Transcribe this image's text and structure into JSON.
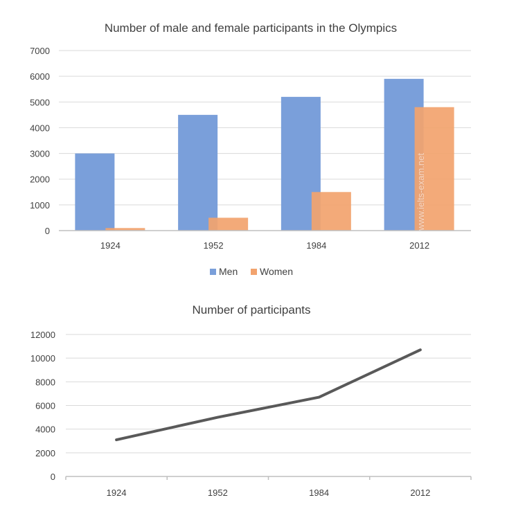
{
  "chart_data": [
    {
      "type": "bar",
      "title": "Number of male and female participants in the Olympics",
      "categories": [
        "1924",
        "1952",
        "1984",
        "2012"
      ],
      "series": [
        {
          "name": "Men",
          "color": "#7a9fda",
          "values": [
            3000,
            4500,
            5200,
            5900
          ]
        },
        {
          "name": "Women",
          "color": "#f2a36e",
          "values": [
            100,
            500,
            1500,
            4800
          ]
        }
      ],
      "ylim": [
        0,
        7000
      ],
      "yticks": [
        "0",
        "1000",
        "2000",
        "3000",
        "4000",
        "5000",
        "6000",
        "7000"
      ],
      "grid": true,
      "legend": "bottom",
      "watermark": "www.ielts-exam.net"
    },
    {
      "type": "line",
      "title": "Number of participants",
      "categories": [
        "1924",
        "1952",
        "1984",
        "2012"
      ],
      "series": [
        {
          "color": "#595959",
          "values": [
            3100,
            5000,
            6700,
            10700
          ]
        }
      ],
      "ylim": [
        0,
        12000
      ],
      "yticks": [
        "0",
        "2000",
        "4000",
        "6000",
        "8000",
        "10000",
        "12000"
      ],
      "grid": true
    }
  ]
}
